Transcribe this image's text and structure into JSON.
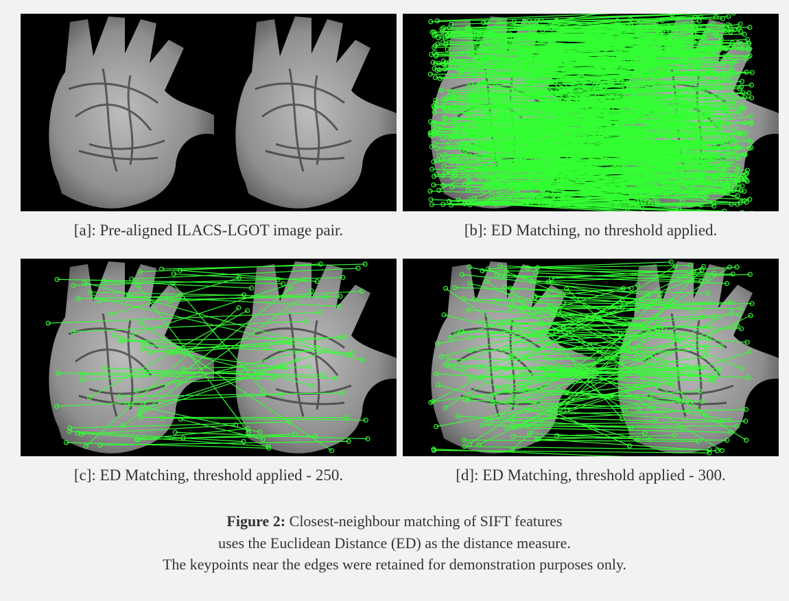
{
  "panels": [
    {
      "caption": "[a]: Pre-aligned ILACS-LGOT image pair."
    },
    {
      "caption": "[b]: ED Matching, no threshold applied."
    },
    {
      "caption": "[c]: ED Matching, threshold applied - 250."
    },
    {
      "caption": "[d]: ED Matching, threshold applied - 300."
    }
  ],
  "figure": {
    "label": "Figure 2:",
    "lines": [
      "Closest-neighbour matching of SIFT features",
      "uses the Euclidean Distance (ED) as the distance measure.",
      "The keypoints near the edges were retained for demonstration purposes only."
    ]
  }
}
